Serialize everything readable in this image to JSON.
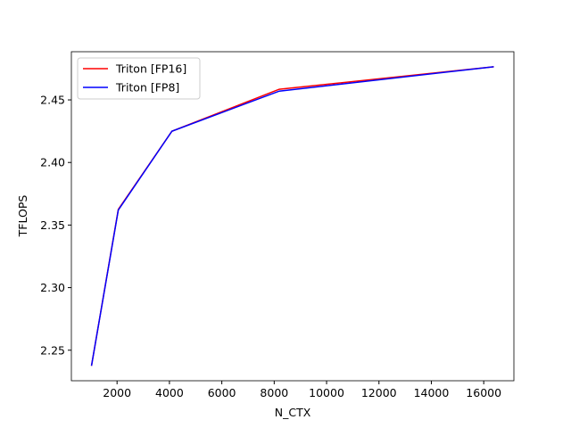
{
  "chart_data": {
    "type": "line",
    "x_label": "N_CTX",
    "y_label": "TFLOPS",
    "x": [
      1024,
      2048,
      4096,
      8192,
      16384
    ],
    "series": [
      {
        "name": "Triton [FP16]",
        "color": "#ff0000",
        "values": [
          2.2375,
          2.3625,
          2.425,
          2.4585,
          2.4765
        ]
      },
      {
        "name": "Triton [FP8]",
        "color": "#0000ff",
        "values": [
          2.2375,
          2.362,
          2.425,
          2.457,
          2.4765
        ]
      }
    ],
    "xlim": [
      256,
      17152
    ],
    "xticks": [
      2000,
      4000,
      6000,
      8000,
      10000,
      12000,
      14000,
      16000
    ],
    "ylim": [
      2.2256,
      2.4885
    ],
    "yticks": [
      2.25,
      {
        "value": 2.3,
        "label": "2.30"
      },
      2.35,
      {
        "value": 2.4,
        "label": "2.40"
      },
      2.45
    ],
    "grid": false,
    "legend": "upper-left"
  }
}
